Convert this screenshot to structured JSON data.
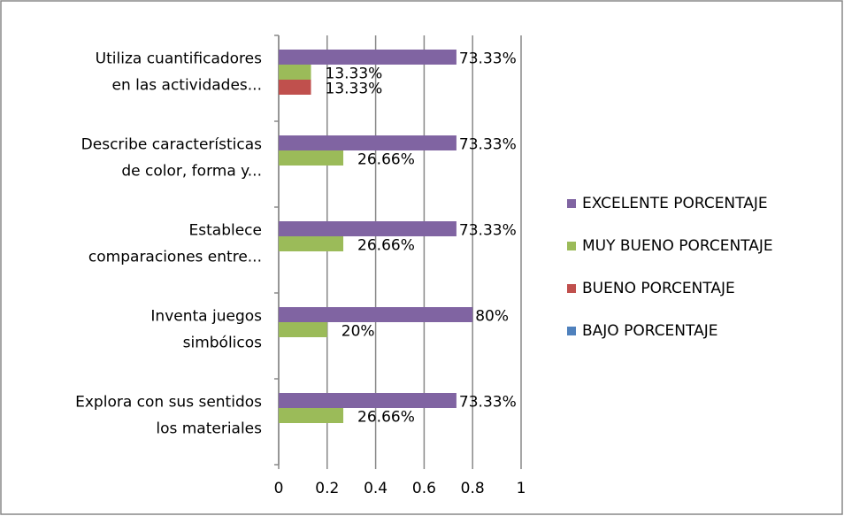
{
  "chart_data": {
    "type": "bar",
    "orientation": "horizontal",
    "categories": [
      [
        "Utiliza cuantificadores",
        "en las actividades..."
      ],
      [
        "Describe características",
        "de color, forma y..."
      ],
      [
        "Establece",
        "comparaciones entre..."
      ],
      [
        "Inventa juegos",
        "simbólicos"
      ],
      [
        "Explora con sus sentidos",
        "los materiales"
      ]
    ],
    "series": [
      {
        "name": "EXCELENTE PORCENTAJE",
        "color": "#8064a2",
        "values": [
          0.7333,
          0.7333,
          0.7333,
          0.8,
          0.7333
        ],
        "value_labels": [
          "73.33%",
          "73.33%",
          "73.33%",
          "80%",
          "73.33%"
        ]
      },
      {
        "name": "MUY BUENO PORCENTAJE",
        "color": "#9bbb59",
        "values": [
          0.1333,
          0.2666,
          0.2666,
          0.2,
          0.2666
        ],
        "value_labels": [
          "13.33%",
          "26.66%",
          "26.66%",
          "20%",
          "26.66%"
        ]
      },
      {
        "name": "BUENO PORCENTAJE",
        "color": "#c0504d",
        "values": [
          0.1333,
          0,
          0,
          0,
          0
        ],
        "value_labels": [
          "13.33%",
          null,
          null,
          null,
          null
        ]
      },
      {
        "name": "BAJO PORCENTAJE",
        "color": "#4f81bd",
        "values": [
          0,
          0,
          0,
          0,
          0
        ],
        "value_labels": [
          null,
          null,
          null,
          null,
          null
        ]
      }
    ],
    "xlim": [
      0,
      1
    ],
    "xticks": [
      0,
      0.2,
      0.4,
      0.6,
      0.8,
      1
    ],
    "grid": true,
    "legend": "right"
  }
}
